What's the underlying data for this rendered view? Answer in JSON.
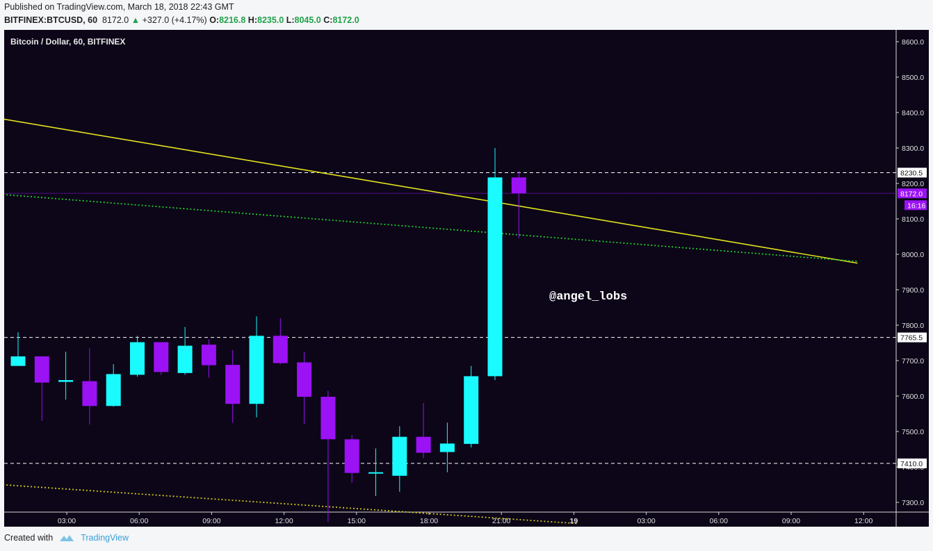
{
  "header": {
    "published": "Published on TradingView.com, March 18, 2018 22:43 GMT",
    "symbol": "BITFINEX:BTCUSD, 60",
    "last": "8172.0",
    "change": "+327.0 (+4.17%)",
    "o_label": "O:",
    "o_value": "8216.8",
    "h_label": "H:",
    "h_value": "8235.0",
    "l_label": "L:",
    "l_value": "8045.0",
    "c_label": "C:",
    "c_value": "8172.0"
  },
  "footer": {
    "created_with": "Created with",
    "brand": "TradingView"
  },
  "colors": {
    "background": "#0c0618",
    "up": "#19fbff",
    "down": "#9b12f5",
    "trendline": "#e3e41e",
    "green_dotted": "#22d12a",
    "yellow_dotted": "#d6c81a"
  },
  "chart_data": {
    "type": "candlestick",
    "title": "Bitcoin / Dollar, 60, BITFINEX",
    "watermark": "@angel_lobs",
    "ylim": [
      7230,
      8630
    ],
    "y_ticks": [
      "8600.0",
      "8500.0",
      "8400.0",
      "8300.0",
      "8200.0",
      "8100.0",
      "8000.0",
      "7900.0",
      "7800.0",
      "7700.0",
      "7600.0",
      "7500.0",
      "7400.0",
      "7300.0"
    ],
    "x_ticks": [
      "03:00",
      "06:00",
      "09:00",
      "12:00",
      "15:00",
      "18:00",
      "21:00",
      "19",
      "03:00",
      "06:00",
      "09:00",
      "12:00"
    ],
    "candles": [
      {
        "o": 7685,
        "h": 7780,
        "l": 7685,
        "c": 7712
      },
      {
        "o": 7712,
        "h": 7712,
        "l": 7530,
        "c": 7638
      },
      {
        "o": 7640,
        "h": 7725,
        "l": 7590,
        "c": 7645
      },
      {
        "o": 7642,
        "h": 7735,
        "l": 7520,
        "c": 7572
      },
      {
        "o": 7572,
        "h": 7690,
        "l": 7570,
        "c": 7662
      },
      {
        "o": 7660,
        "h": 7770,
        "l": 7655,
        "c": 7752
      },
      {
        "o": 7752,
        "h": 7752,
        "l": 7660,
        "c": 7668
      },
      {
        "o": 7665,
        "h": 7795,
        "l": 7660,
        "c": 7742
      },
      {
        "o": 7745,
        "h": 7760,
        "l": 7652,
        "c": 7687
      },
      {
        "o": 7688,
        "h": 7730,
        "l": 7525,
        "c": 7578
      },
      {
        "o": 7578,
        "h": 7825,
        "l": 7540,
        "c": 7770
      },
      {
        "o": 7770,
        "h": 7820,
        "l": 7690,
        "c": 7693
      },
      {
        "o": 7695,
        "h": 7725,
        "l": 7522,
        "c": 7598
      },
      {
        "o": 7598,
        "h": 7615,
        "l": 7245,
        "c": 7478
      },
      {
        "o": 7478,
        "h": 7490,
        "l": 7355,
        "c": 7383
      },
      {
        "o": 7385,
        "h": 7452,
        "l": 7318,
        "c": 7385
      },
      {
        "o": 7375,
        "h": 7515,
        "l": 7330,
        "c": 7485
      },
      {
        "o": 7485,
        "h": 7580,
        "l": 7425,
        "c": 7440
      },
      {
        "o": 7442,
        "h": 7525,
        "l": 7385,
        "c": 7466
      },
      {
        "o": 7465,
        "h": 7685,
        "l": 7455,
        "c": 7656
      },
      {
        "o": 7656,
        "h": 8300,
        "l": 7645,
        "c": 8217
      },
      {
        "o": 8217,
        "h": 8235,
        "l": 8045,
        "c": 8172
      }
    ],
    "hlines": [
      {
        "value": 8230.5,
        "label": "8230.5",
        "style": "dashed",
        "color": "#ffffff"
      },
      {
        "value": 7765.5,
        "label": "7765.5",
        "style": "dashed",
        "color": "#ffffff"
      },
      {
        "value": 7410.0,
        "label": "7410.0",
        "style": "dashed",
        "color": "#ffffff"
      }
    ],
    "price_line": {
      "value": 8172.0,
      "label": "8172.0",
      "timer": "16:16",
      "color": "#9b12f5"
    },
    "trendlines": [
      {
        "style": "solid",
        "color": "#e3e41e",
        "from": {
          "bar": -1.8,
          "value": 8395
        },
        "to": {
          "bar": 35.2,
          "value": 7975
        }
      },
      {
        "style": "dotted",
        "color": "#22d12a",
        "from": {
          "bar": -1.8,
          "value": 8175
        },
        "to": {
          "bar": 35.2,
          "value": 7980
        }
      },
      {
        "style": "dotted",
        "color": "#d6c81a",
        "from": {
          "bar": -1.8,
          "value": 7355
        },
        "to": {
          "bar": 23.5,
          "value": 7240
        }
      }
    ]
  }
}
